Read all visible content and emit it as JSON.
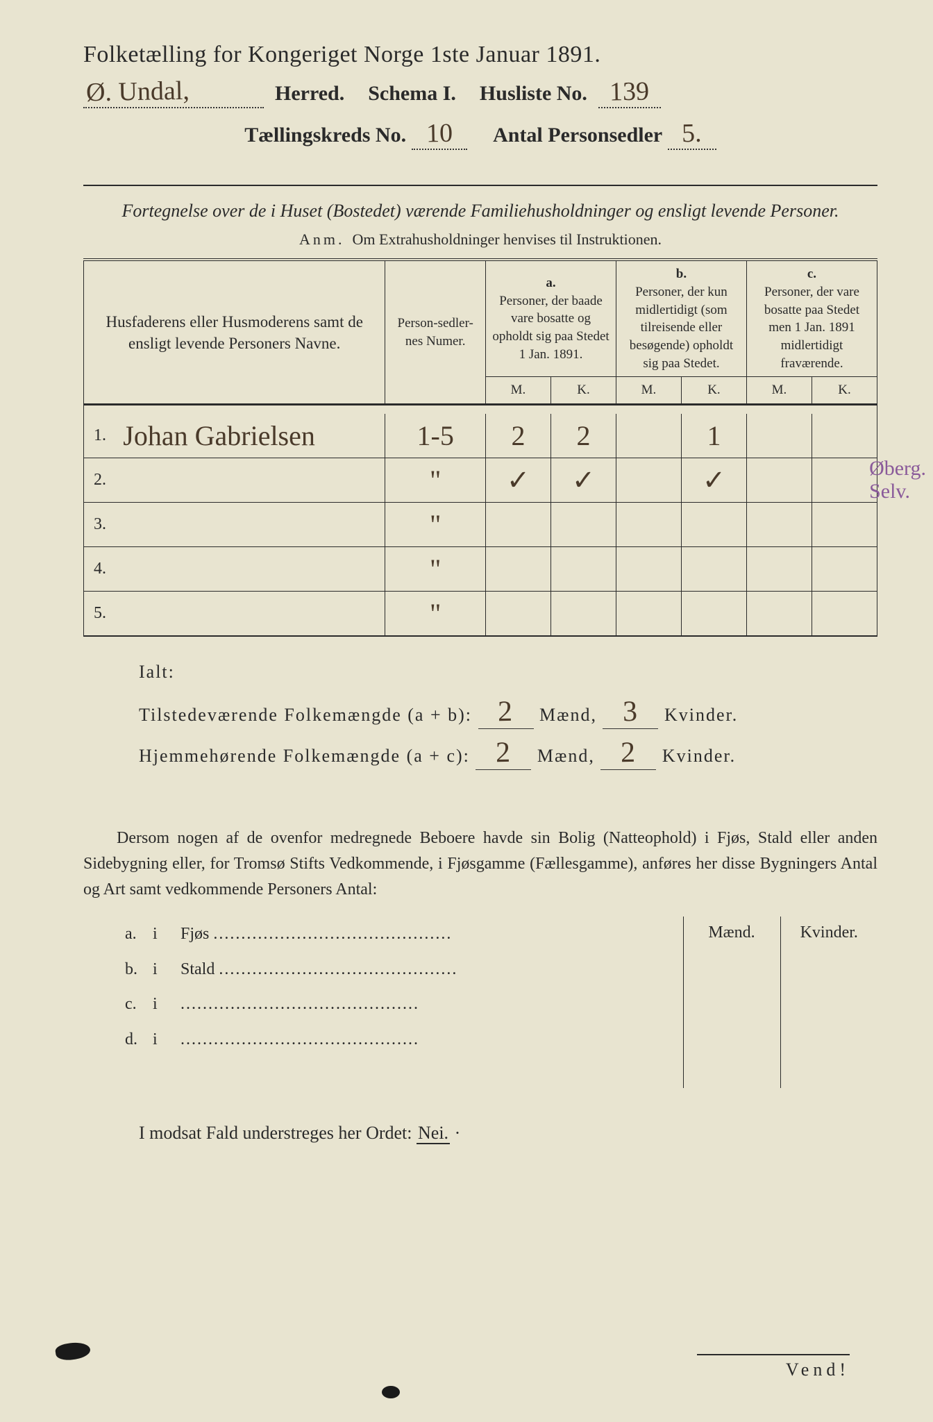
{
  "colors": {
    "paper": "#e8e4d0",
    "ink": "#2a2a2a",
    "handwriting": "#4a3a2a",
    "pencil_note": "#8a5a9a"
  },
  "typography": {
    "print_family": "Georgia / Times",
    "script_family": "Brush Script / cursive",
    "title_size_pt": 26,
    "body_size_pt": 18,
    "table_header_size_pt": 14
  },
  "header": {
    "title": "Folketælling for Kongeriget Norge 1ste Januar 1891.",
    "herred_value": "Ø. Undal,",
    "herred_label": "Herred.",
    "schema_label": "Schema I.",
    "husliste_label": "Husliste No.",
    "husliste_value": "139",
    "kreds_label": "Tællingskreds No.",
    "kreds_value": "10",
    "antal_label": "Antal Personsedler",
    "antal_value": "5."
  },
  "subtitle": {
    "line": "Fortegnelse over de i Huset (Bostedet) værende Familiehusholdninger og ensligt levende Personer.",
    "anm_label": "Anm.",
    "anm_text": "Om Extrahusholdninger henvises til Instruktionen."
  },
  "table": {
    "col_name": "Husfaderens eller Husmoderens samt de ensligt levende Personers Navne.",
    "col_num": "Person-sedler-nes Numer.",
    "col_a_label": "a.",
    "col_a_text": "Personer, der baade vare bosatte og opholdt sig paa Stedet 1 Jan. 1891.",
    "col_b_label": "b.",
    "col_b_text": "Personer, der kun midlertidigt (som tilreisende eller besøgende) opholdt sig paa Stedet.",
    "col_c_label": "c.",
    "col_c_text": "Personer, der vare bosatte paa Stedet men 1 Jan. 1891 midlertidigt fraværende.",
    "mk_m": "M.",
    "mk_k": "K.",
    "rows": [
      {
        "n": "1.",
        "name": "Johan Gabrielsen",
        "num": "1-5",
        "a_m": "2",
        "a_k": "2",
        "b_m": "",
        "b_k": "1",
        "c_m": "",
        "c_k": ""
      },
      {
        "n": "2.",
        "name": "",
        "num": "\"",
        "a_m": "✓",
        "a_k": "✓",
        "b_m": "",
        "b_k": "✓",
        "c_m": "",
        "c_k": ""
      },
      {
        "n": "3.",
        "name": "",
        "num": "\"",
        "a_m": "",
        "a_k": "",
        "b_m": "",
        "b_k": "",
        "c_m": "",
        "c_k": ""
      },
      {
        "n": "4.",
        "name": "",
        "num": "\"",
        "a_m": "",
        "a_k": "",
        "b_m": "",
        "b_k": "",
        "c_m": "",
        "c_k": ""
      },
      {
        "n": "5.",
        "name": "",
        "num": "\"",
        "a_m": "",
        "a_k": "",
        "b_m": "",
        "b_k": "",
        "c_m": "",
        "c_k": ""
      }
    ]
  },
  "margin_note": {
    "line1": "Øberg.",
    "line2": "Selv."
  },
  "totals": {
    "ialt": "Ialt:",
    "row1_label": "Tilstedeværende Folkemængde (a + b):",
    "row1_m": "2",
    "row1_k": "3",
    "row2_label": "Hjemmehørende Folkemængde (a + c):",
    "row2_m": "2",
    "row2_k": "2",
    "maend": "Mænd,",
    "kvinder": "Kvinder."
  },
  "paragraph": "Dersom nogen af de ovenfor medregnede Beboere havde sin Bolig (Natteophold) i Fjøs, Stald eller anden Sidebygning eller, for Tromsø Stifts Vedkommende, i Fjøsgamme (Fællesgamme), anføres her disse Bygningers Antal og Art samt vedkommende Personers Antal:",
  "sidebygning": {
    "headers": {
      "m": "Mænd.",
      "k": "Kvinder."
    },
    "rows": [
      {
        "letter": "a.",
        "i": "i",
        "label": "Fjøs"
      },
      {
        "letter": "b.",
        "i": "i",
        "label": "Stald"
      },
      {
        "letter": "c.",
        "i": "i",
        "label": ""
      },
      {
        "letter": "d.",
        "i": "i",
        "label": ""
      }
    ]
  },
  "footer": {
    "line": "I modsat Fald understreges her Ordet:",
    "nej": "Nei.",
    "vend": "Vend!"
  }
}
